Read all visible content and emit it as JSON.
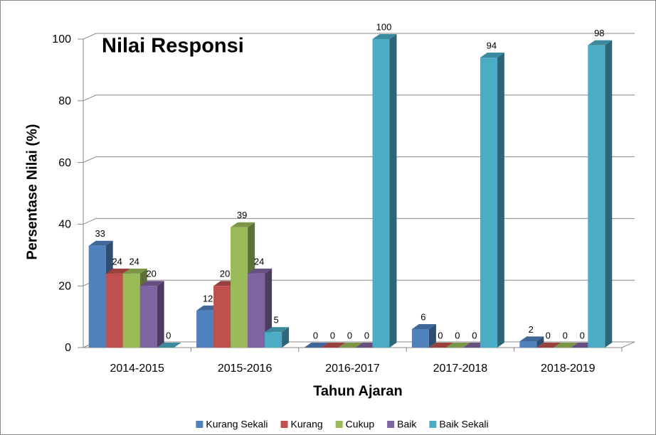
{
  "chart_data": {
    "type": "bar3d",
    "title": "Nilai Responsi",
    "xlabel": "Tahun Ajaran",
    "ylabel": "Persentase Nilai (%)",
    "categories": [
      "2014-2015",
      "2015-2016",
      "2016-2017",
      "2017-2018",
      "2018-2019"
    ],
    "series": [
      {
        "name": "Kurang Sekali",
        "color": "#4f81bd",
        "values": [
          33,
          12,
          0,
          6,
          2
        ]
      },
      {
        "name": "Kurang",
        "color": "#c0504d",
        "values": [
          24,
          20,
          0,
          0,
          0
        ]
      },
      {
        "name": "Cukup",
        "color": "#9bbb59",
        "values": [
          24,
          39,
          0,
          0,
          0
        ]
      },
      {
        "name": "Baik",
        "color": "#8064a2",
        "values": [
          20,
          24,
          0,
          0,
          0
        ]
      },
      {
        "name": "Baik Sekali",
        "color": "#4bacc6",
        "values": [
          0,
          5,
          100,
          94,
          98
        ]
      }
    ],
    "ylim": [
      0,
      100
    ],
    "yticks": [
      0,
      20,
      40,
      60,
      80,
      100
    ],
    "grid": true,
    "legend": "bottom"
  }
}
